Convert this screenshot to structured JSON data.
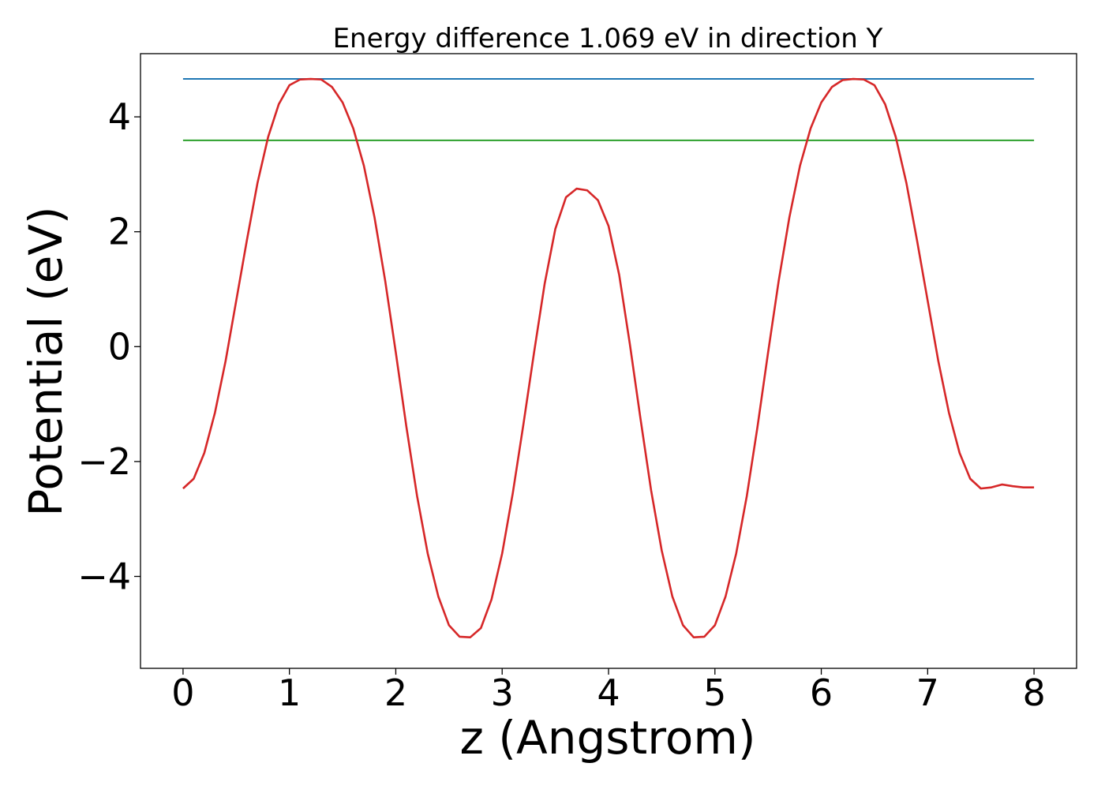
{
  "chart_data": {
    "type": "line",
    "title": "Energy difference 1.069 eV in direction Y",
    "xlabel": "z (Angstrom)",
    "ylabel": "Potential (eV)",
    "xlim": [
      -0.4,
      8.4
    ],
    "ylim": [
      -5.6,
      5.1
    ],
    "xticks": [
      0,
      1,
      2,
      3,
      4,
      5,
      6,
      7,
      8
    ],
    "xtick_labels": [
      "0",
      "1",
      "2",
      "3",
      "4",
      "5",
      "6",
      "7",
      "8"
    ],
    "yticks": [
      -4,
      -2,
      0,
      2,
      4
    ],
    "ytick_labels": [
      "−4",
      "−2",
      "0",
      "2",
      "4"
    ],
    "grid": false,
    "legend": false,
    "series": [
      {
        "color": "#d62728",
        "x": [
          0,
          0.1,
          0.2,
          0.3,
          0.4,
          0.5,
          0.6,
          0.7,
          0.8,
          0.9,
          1.0,
          1.1,
          1.2,
          1.3,
          1.4,
          1.5,
          1.6,
          1.7,
          1.8,
          1.9,
          2.0,
          2.1,
          2.2,
          2.3,
          2.4,
          2.5,
          2.6,
          2.7,
          2.8,
          2.9,
          3.0,
          3.1,
          3.2,
          3.3,
          3.4,
          3.5,
          3.6,
          3.7,
          3.8,
          3.9,
          4.0,
          4.1,
          4.2,
          4.3,
          4.4,
          4.5,
          4.6,
          4.7,
          4.8,
          4.9,
          5.0,
          5.1,
          5.2,
          5.3,
          5.4,
          5.5,
          5.6,
          5.7,
          5.8,
          5.9,
          6.0,
          6.1,
          6.2,
          6.3,
          6.4,
          6.5,
          6.6,
          6.7,
          6.8,
          6.9,
          7.0,
          7.1,
          7.2,
          7.3,
          7.4,
          7.5,
          7.6,
          7.7,
          7.8,
          7.9,
          8.0
        ],
        "y": [
          -2.47,
          -2.3,
          -1.85,
          -1.15,
          -0.25,
          0.8,
          1.85,
          2.85,
          3.65,
          4.22,
          4.55,
          4.65,
          4.66,
          4.65,
          4.52,
          4.25,
          3.8,
          3.15,
          2.25,
          1.15,
          -0.1,
          -1.4,
          -2.6,
          -3.6,
          -4.35,
          -4.85,
          -5.05,
          -5.06,
          -4.9,
          -4.4,
          -3.6,
          -2.55,
          -1.35,
          -0.1,
          1.1,
          2.05,
          2.6,
          2.75,
          2.72,
          2.55,
          2.1,
          1.25,
          0.05,
          -1.25,
          -2.5,
          -3.55,
          -4.35,
          -4.85,
          -5.06,
          -5.05,
          -4.85,
          -4.35,
          -3.6,
          -2.6,
          -1.4,
          -0.1,
          1.15,
          2.25,
          3.15,
          3.8,
          4.25,
          4.52,
          4.64,
          4.66,
          4.65,
          4.55,
          4.22,
          3.65,
          2.85,
          1.85,
          0.8,
          -0.25,
          -1.15,
          -1.85,
          -2.3,
          -2.47,
          -2.45,
          -2.4,
          -2.43,
          -2.45,
          -2.45
        ]
      },
      {
        "color": "#1f77b4",
        "x": [
          0,
          8
        ],
        "y": [
          4.66,
          4.66
        ]
      },
      {
        "color": "#2ca02c",
        "x": [
          0,
          8
        ],
        "y": [
          3.59,
          3.59
        ]
      }
    ]
  }
}
